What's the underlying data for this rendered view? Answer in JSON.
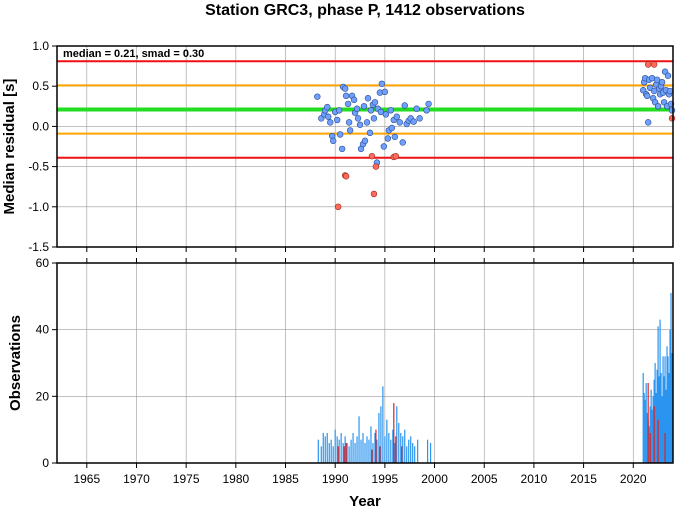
{
  "chart_data": [
    {
      "type": "scatter",
      "title": "Station GRC3, phase P, 1412 observations",
      "ylabel": "Median residual [s]",
      "annotation": "median = 0.21, smad = 0.30",
      "xlim": [
        1962,
        2024
      ],
      "ylim": [
        -1.5,
        1.0
      ],
      "yticks": [
        "1.0",
        "0.5",
        "0.0",
        "-0.5",
        "-1.0",
        "-1.5"
      ],
      "ytick_values": [
        1.0,
        0.5,
        0.0,
        -0.5,
        -1.0,
        -1.5
      ],
      "grid": true,
      "hlines": [
        {
          "y": 0.81,
          "color": "#ee1111"
        },
        {
          "y": 0.51,
          "color": "#ffa500"
        },
        {
          "y": 0.21,
          "color": "#22dd22"
        },
        {
          "y": -0.09,
          "color": "#ffa500"
        },
        {
          "y": -0.39,
          "color": "#ee1111"
        }
      ],
      "inlier_color": "#6fa0ff",
      "outlier_color": "#ff6b5b",
      "points": [
        [
          1988.2,
          0.37
        ],
        [
          1988.6,
          0.1
        ],
        [
          1988.9,
          0.15
        ],
        [
          1989.0,
          0.2
        ],
        [
          1989.2,
          0.24
        ],
        [
          1989.3,
          0.12
        ],
        [
          1989.5,
          0.05
        ],
        [
          1989.7,
          -0.12
        ],
        [
          1989.8,
          -0.18
        ],
        [
          1990.0,
          0.18
        ],
        [
          1990.2,
          0.08
        ],
        [
          1990.4,
          0.2
        ],
        [
          1990.5,
          -0.1
        ],
        [
          1990.7,
          -0.28
        ],
        [
          1990.8,
          0.49
        ],
        [
          1991.0,
          0.47
        ],
        [
          1991.1,
          0.38
        ],
        [
          1991.3,
          0.28
        ],
        [
          1991.4,
          0.05
        ],
        [
          1991.5,
          -0.05
        ],
        [
          1991.7,
          0.38
        ],
        [
          1991.9,
          0.33
        ],
        [
          1992.0,
          0.17
        ],
        [
          1992.2,
          0.22
        ],
        [
          1992.3,
          0.1
        ],
        [
          1992.5,
          0.02
        ],
        [
          1992.6,
          -0.28
        ],
        [
          1992.8,
          -0.22
        ],
        [
          1992.9,
          0.25
        ],
        [
          1993.0,
          -0.18
        ],
        [
          1993.2,
          0.05
        ],
        [
          1993.3,
          0.35
        ],
        [
          1993.5,
          -0.08
        ],
        [
          1993.6,
          0.2
        ],
        [
          1993.8,
          0.27
        ],
        [
          1993.9,
          0.1
        ],
        [
          1994.0,
          0.3
        ],
        [
          1994.2,
          -0.45
        ],
        [
          1994.3,
          0.22
        ],
        [
          1994.5,
          0.42
        ],
        [
          1994.6,
          0.18
        ],
        [
          1994.7,
          0.53
        ],
        [
          1994.9,
          -0.25
        ],
        [
          1995.0,
          0.43
        ],
        [
          1995.1,
          0.15
        ],
        [
          1995.3,
          -0.15
        ],
        [
          1995.4,
          -0.05
        ],
        [
          1995.6,
          0.2
        ],
        [
          1995.7,
          -0.02
        ],
        [
          1995.9,
          0.08
        ],
        [
          1996.0,
          -0.13
        ],
        [
          1996.2,
          0.12
        ],
        [
          1996.5,
          0.05
        ],
        [
          1996.8,
          -0.2
        ],
        [
          1997.0,
          0.26
        ],
        [
          1997.2,
          0.03
        ],
        [
          1997.4,
          0.07
        ],
        [
          1997.6,
          0.1
        ],
        [
          1997.9,
          0.06
        ],
        [
          1998.2,
          0.22
        ],
        [
          1998.5,
          0.1
        ],
        [
          1999.2,
          0.2
        ],
        [
          1999.4,
          0.28
        ],
        [
          2021.0,
          0.45
        ],
        [
          2021.1,
          0.55
        ],
        [
          2021.2,
          0.6
        ],
        [
          2021.3,
          0.4
        ],
        [
          2021.4,
          0.38
        ],
        [
          2021.5,
          0.05
        ],
        [
          2021.6,
          0.58
        ],
        [
          2021.7,
          0.48
        ],
        [
          2021.9,
          0.6
        ],
        [
          2022.0,
          0.35
        ],
        [
          2022.1,
          0.44
        ],
        [
          2022.2,
          0.3
        ],
        [
          2022.3,
          0.52
        ],
        [
          2022.4,
          0.58
        ],
        [
          2022.5,
          0.25
        ],
        [
          2022.6,
          0.47
        ],
        [
          2022.7,
          0.4
        ],
        [
          2022.8,
          0.5
        ],
        [
          2022.9,
          0.55
        ],
        [
          2023.0,
          0.42
        ],
        [
          2023.1,
          0.3
        ],
        [
          2023.2,
          0.68
        ],
        [
          2023.3,
          0.45
        ],
        [
          2023.4,
          0.25
        ],
        [
          2023.5,
          0.63
        ],
        [
          2023.6,
          0.4
        ],
        [
          2023.7,
          0.44
        ],
        [
          2023.8,
          0.28
        ],
        [
          2023.9,
          0.2
        ]
      ],
      "outliers": [
        [
          1990.3,
          -1.0
        ],
        [
          1991.0,
          -0.61
        ],
        [
          1991.1,
          -0.62
        ],
        [
          1993.7,
          -0.37
        ],
        [
          1993.9,
          -0.84
        ],
        [
          1994.1,
          -0.5
        ],
        [
          1995.9,
          -0.38
        ],
        [
          1996.1,
          -0.37
        ],
        [
          2021.5,
          0.77
        ],
        [
          2022.1,
          0.77
        ],
        [
          2023.9,
          0.1
        ]
      ]
    },
    {
      "type": "bar",
      "ylabel": "Observations",
      "xlabel": "Year",
      "xlim": [
        1962,
        2024
      ],
      "ylim": [
        0,
        60
      ],
      "yticks": [
        "60",
        "40",
        "20",
        "0"
      ],
      "ytick_values": [
        60,
        40,
        20,
        0
      ],
      "xticks": [
        "1965",
        "1970",
        "1975",
        "1980",
        "1985",
        "1990",
        "1995",
        "2000",
        "2005",
        "2010",
        "2015",
        "2020"
      ],
      "xtick_values": [
        1965,
        1970,
        1975,
        1980,
        1985,
        1990,
        1995,
        2000,
        2005,
        2010,
        2015,
        2020
      ],
      "grid": true,
      "bar_color": "#2b95f0",
      "outlier_bar_color": "#e02020",
      "bars": [
        [
          1988.3,
          7
        ],
        [
          1988.6,
          5
        ],
        [
          1988.8,
          9
        ],
        [
          1989.0,
          8
        ],
        [
          1989.2,
          9
        ],
        [
          1989.4,
          6
        ],
        [
          1989.6,
          7
        ],
        [
          1989.8,
          5
        ],
        [
          1990.0,
          10
        ],
        [
          1990.2,
          8
        ],
        [
          1990.4,
          7
        ],
        [
          1990.6,
          9
        ],
        [
          1990.8,
          6
        ],
        [
          1991.0,
          8
        ],
        [
          1991.2,
          6
        ],
        [
          1991.4,
          5
        ],
        [
          1991.6,
          7
        ],
        [
          1991.8,
          9
        ],
        [
          1992.0,
          6
        ],
        [
          1992.2,
          8
        ],
        [
          1992.4,
          14
        ],
        [
          1992.6,
          7
        ],
        [
          1992.8,
          9
        ],
        [
          1993.0,
          6
        ],
        [
          1993.2,
          8
        ],
        [
          1993.4,
          7
        ],
        [
          1993.6,
          11
        ],
        [
          1993.8,
          6
        ],
        [
          1994.0,
          9
        ],
        [
          1994.2,
          7
        ],
        [
          1994.4,
          15
        ],
        [
          1994.6,
          17
        ],
        [
          1994.8,
          23
        ],
        [
          1995.0,
          8
        ],
        [
          1995.2,
          13
        ],
        [
          1995.4,
          9
        ],
        [
          1995.6,
          7
        ],
        [
          1995.8,
          10
        ],
        [
          1996.0,
          6
        ],
        [
          1996.2,
          17
        ],
        [
          1996.4,
          12
        ],
        [
          1996.6,
          9
        ],
        [
          1996.8,
          8
        ],
        [
          1997.0,
          10
        ],
        [
          1997.2,
          5
        ],
        [
          1997.4,
          7
        ],
        [
          1997.6,
          8
        ],
        [
          1997.8,
          6
        ],
        [
          1998.0,
          5
        ],
        [
          1998.3,
          7
        ],
        [
          1999.3,
          7
        ],
        [
          1999.6,
          6
        ],
        [
          2021.0,
          27
        ],
        [
          2021.1,
          21
        ],
        [
          2021.2,
          19
        ],
        [
          2021.3,
          24
        ],
        [
          2021.4,
          15
        ],
        [
          2021.5,
          13
        ],
        [
          2021.6,
          11
        ],
        [
          2021.7,
          17
        ],
        [
          2021.8,
          22
        ],
        [
          2021.9,
          16
        ],
        [
          2022.0,
          20
        ],
        [
          2022.1,
          25
        ],
        [
          2022.2,
          30
        ],
        [
          2022.3,
          21
        ],
        [
          2022.4,
          28
        ],
        [
          2022.5,
          41
        ],
        [
          2022.6,
          26
        ],
        [
          2022.7,
          43
        ],
        [
          2022.8,
          27
        ],
        [
          2022.9,
          20
        ],
        [
          2023.0,
          32
        ],
        [
          2023.1,
          26
        ],
        [
          2023.2,
          32
        ],
        [
          2023.3,
          22
        ],
        [
          2023.4,
          35
        ],
        [
          2023.5,
          32
        ],
        [
          2023.6,
          27
        ],
        [
          2023.7,
          40
        ],
        [
          2023.8,
          51
        ],
        [
          2023.9,
          33
        ]
      ],
      "outlier_bars": [
        [
          1990.3,
          5
        ],
        [
          1990.9,
          5
        ],
        [
          1991.1,
          6
        ],
        [
          1993.7,
          4
        ],
        [
          1994.1,
          10
        ],
        [
          1994.5,
          5
        ],
        [
          1995.9,
          18
        ],
        [
          1996.1,
          8
        ],
        [
          1996.7,
          5
        ],
        [
          2021.5,
          24
        ],
        [
          2021.7,
          9
        ],
        [
          2022.1,
          17
        ],
        [
          2022.5,
          13
        ],
        [
          2023.2,
          9
        ]
      ]
    }
  ]
}
